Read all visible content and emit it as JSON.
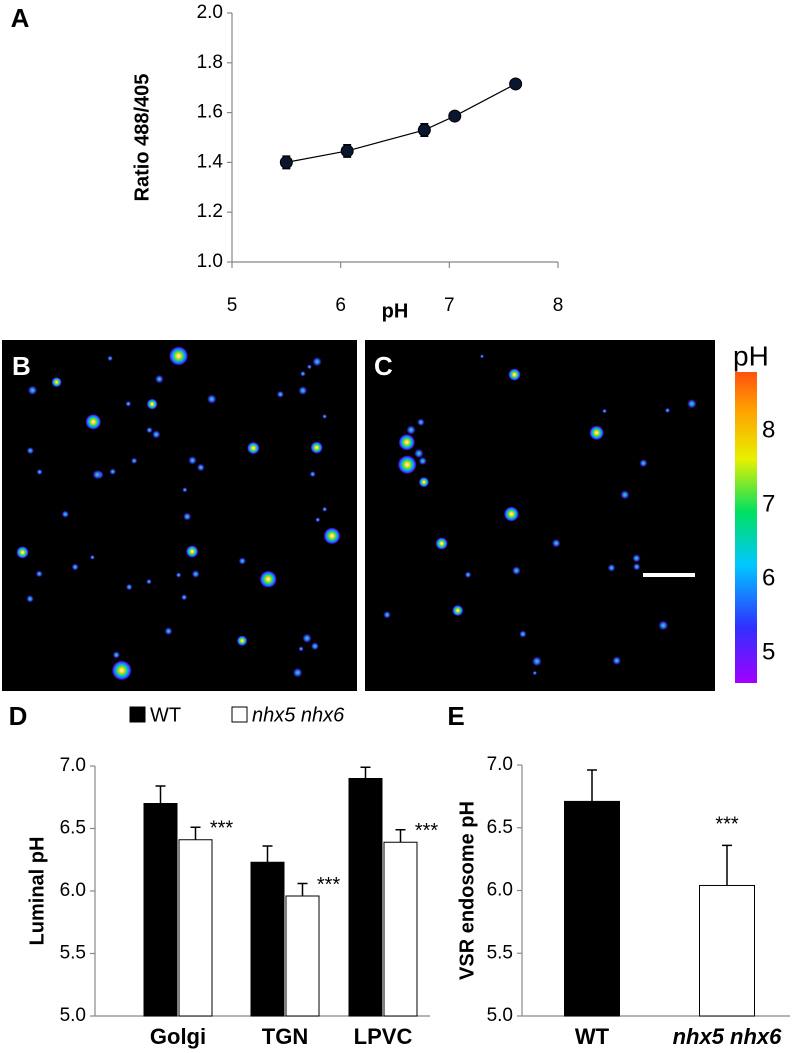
{
  "chart_data": [
    {
      "type": "line",
      "panel_label": "A",
      "xlabel": "pH",
      "ylabel": "Ratio 488/405",
      "x": [
        5.5,
        6.06,
        6.77,
        7.05,
        7.61
      ],
      "series": [
        {
          "color": "#000000",
          "values": [
            1.4,
            1.446,
            1.53,
            1.586,
            1.715
          ],
          "errors": [
            0.025,
            0.025,
            0.025,
            0.015,
            0.012
          ]
        }
      ],
      "xlim": [
        5,
        8
      ],
      "xticks": [
        5,
        6,
        7,
        8
      ],
      "ylim": [
        1,
        2
      ],
      "yticks": [
        {
          "value": 1,
          "label": "1.0"
        },
        1.2,
        1.4,
        1.6,
        1.8,
        {
          "value": 2,
          "label": "2.0"
        }
      ]
    },
    {
      "type": "bar",
      "panel_label": "D",
      "ylabel": "Luminal pH",
      "annotation": "***",
      "categories": [
        "Golgi",
        "TGN",
        "LPVC"
      ],
      "series": [
        {
          "name": "WT",
          "color": "#000000",
          "values": [
            6.7,
            6.23,
            6.9
          ],
          "errors": [
            0.14,
            0.13,
            0.09
          ]
        },
        {
          "name": "nhx5 nhx6",
          "color": "#ffffff",
          "values": [
            6.41,
            5.96,
            6.39
          ],
          "errors": [
            0.1,
            0.1,
            0.1
          ]
        }
      ],
      "ylim": [
        5,
        7
      ],
      "yticks": [
        {
          "value": 5,
          "label": "5.0"
        },
        5.5,
        {
          "value": 6,
          "label": "6.0"
        },
        6.5,
        {
          "value": 7,
          "label": "7.0"
        }
      ]
    },
    {
      "type": "bar",
      "panel_label": "E",
      "ylabel": "VSR endosome pH",
      "annotation": "***",
      "categories": [
        "WT",
        "nhx5 nhx6"
      ],
      "series": [
        {
          "colors": [
            "#000000",
            "#ffffff"
          ],
          "values": [
            6.71,
            6.04
          ],
          "errors": [
            0.25,
            0.32
          ]
        }
      ],
      "ylim": [
        5,
        7
      ],
      "yticks": [
        {
          "value": 5,
          "label": "5.0"
        },
        5.5,
        {
          "value": 6,
          "label": "6.0"
        },
        6.5,
        {
          "value": 7,
          "label": "7.0"
        }
      ]
    }
  ],
  "images": [
    {
      "panel_label": "B"
    },
    {
      "panel_label": "C"
    }
  ],
  "colorbar": {
    "label": "pH",
    "lim": [
      4.6,
      8.8
    ],
    "ticks": [
      5,
      6,
      7,
      8
    ]
  }
}
